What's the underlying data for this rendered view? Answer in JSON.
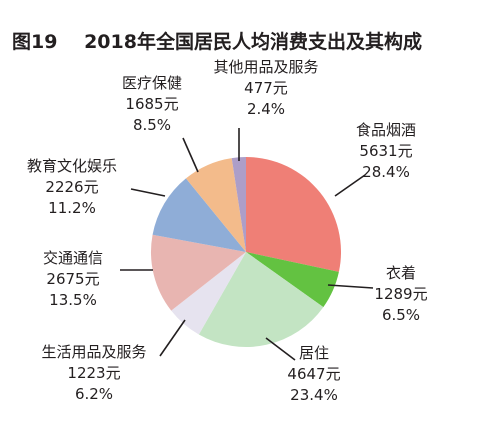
{
  "chart_data": {
    "type": "pie",
    "title_prefix": "图19",
    "title": "2018年全国居民人均消费支出及其构成",
    "slices": [
      {
        "name": "食品烟酒",
        "amount": "5631元",
        "value": 5631,
        "percent": "28.4%",
        "color": "#ef7f76"
      },
      {
        "name": "衣着",
        "amount": "1289元",
        "value": 1289,
        "percent": "6.5%",
        "color": "#63c241"
      },
      {
        "name": "居住",
        "amount": "4647元",
        "value": 4647,
        "percent": "23.4%",
        "color": "#c3e4c3"
      },
      {
        "name": "生活用品及服务",
        "amount": "1223元",
        "value": 1223,
        "percent": "6.2%",
        "color": "#e6e3ef"
      },
      {
        "name": "交通通信",
        "amount": "2675元",
        "value": 2675,
        "percent": "13.5%",
        "color": "#e8b5b1"
      },
      {
        "name": "教育文化娱乐",
        "amount": "2226元",
        "value": 2226,
        "percent": "11.2%",
        "color": "#8fadd7"
      },
      {
        "name": "医疗保健",
        "amount": "1685元",
        "value": 1685,
        "percent": "8.5%",
        "color": "#f3bb8b"
      },
      {
        "name": "其他用品及服务",
        "amount": "477元",
        "value": 477,
        "percent": "2.4%",
        "color": "#ad9ec8"
      }
    ]
  }
}
